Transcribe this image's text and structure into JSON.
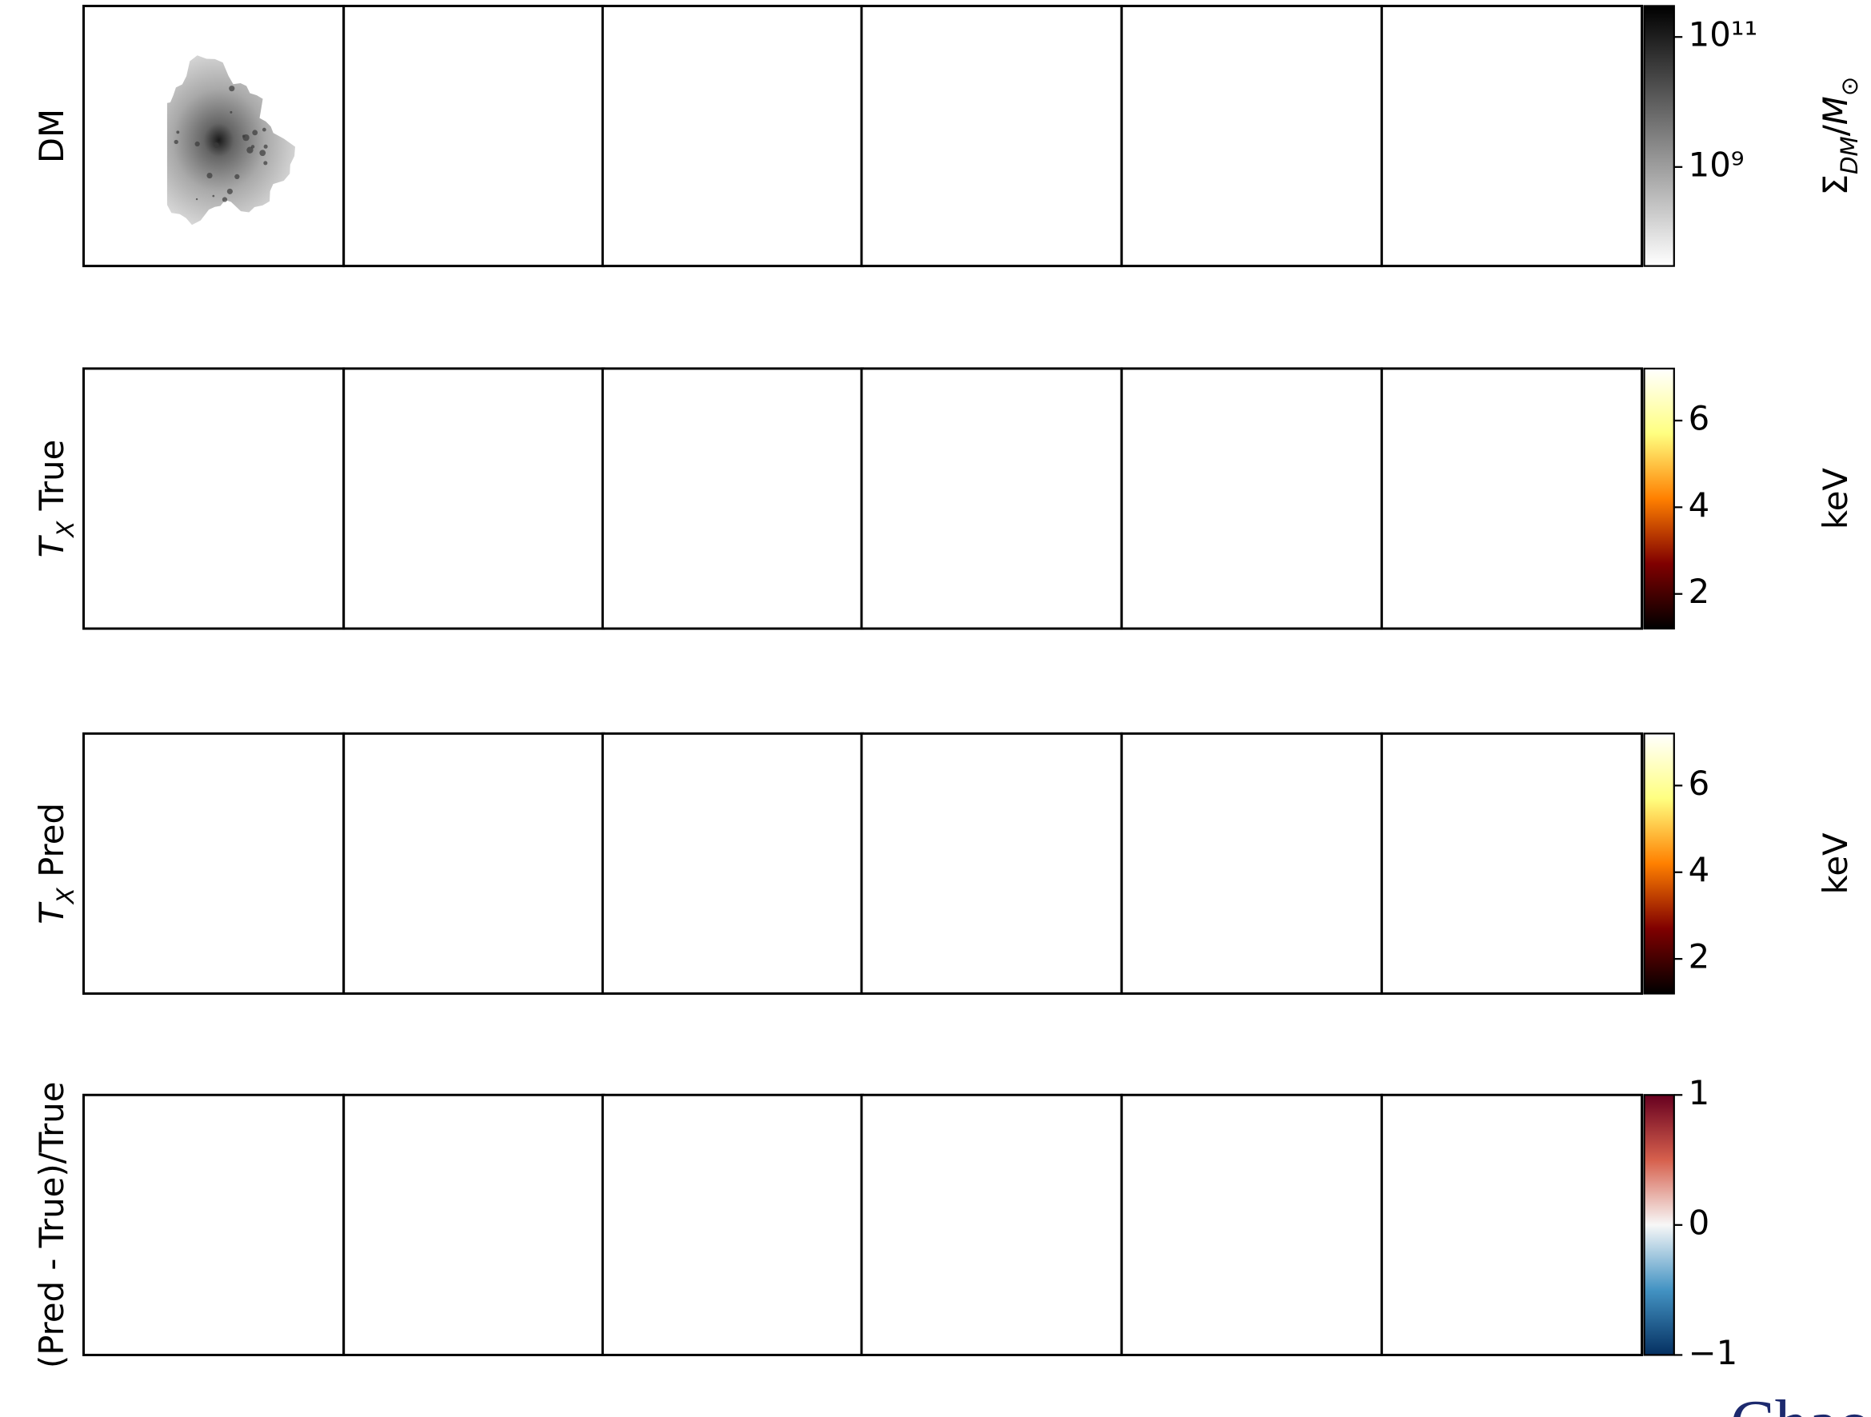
{
  "rows": [
    {
      "label": [
        {
          "text": "DM"
        }
      ],
      "colorbar": {
        "colormap": "gray_r",
        "scale": "log",
        "lim": [
          30000000,
          300000000000
        ],
        "ticks": [
          {
            "value": 100000000000,
            "label": "10¹¹"
          },
          {
            "value": 1000000000,
            "label": "10⁹"
          }
        ],
        "label": [
          {
            "text": "Σ"
          },
          {
            "text": "DM",
            "sub": true,
            "italic": true
          },
          {
            "text": "/"
          },
          {
            "text": "M",
            "italic": true
          },
          {
            "text": "⊙",
            "sub": true
          }
        ]
      }
    },
    {
      "label": [
        {
          "text": "T",
          "italic": true
        },
        {
          "text": "X",
          "sub": true,
          "italic": true
        },
        {
          "text": " True"
        }
      ],
      "colorbar": {
        "colormap": "afmhot",
        "scale": "linear",
        "lim": [
          1.2,
          7.2
        ],
        "ticks": [
          2,
          4,
          6
        ],
        "label": [
          {
            "text": "keV"
          }
        ]
      }
    },
    {
      "label": [
        {
          "text": "T",
          "italic": true
        },
        {
          "text": "X",
          "sub": true,
          "italic": true
        },
        {
          "text": " Pred"
        }
      ],
      "colorbar": {
        "colormap": "afmhot",
        "scale": "linear",
        "lim": [
          1.2,
          7.2
        ],
        "ticks": [
          2,
          4,
          6
        ],
        "label": [
          {
            "text": "keV"
          }
        ]
      }
    },
    {
      "label": [
        {
          "text": "(Pred - True)/True"
        }
      ],
      "colorbar": {
        "colormap": "RdBu_r",
        "scale": "linear",
        "lim": [
          -1,
          1
        ],
        "ticks": [
          1,
          0,
          {
            "value": -1,
            "label": "−1"
          }
        ]
      }
    }
  ],
  "footer_text": "Chao"
}
